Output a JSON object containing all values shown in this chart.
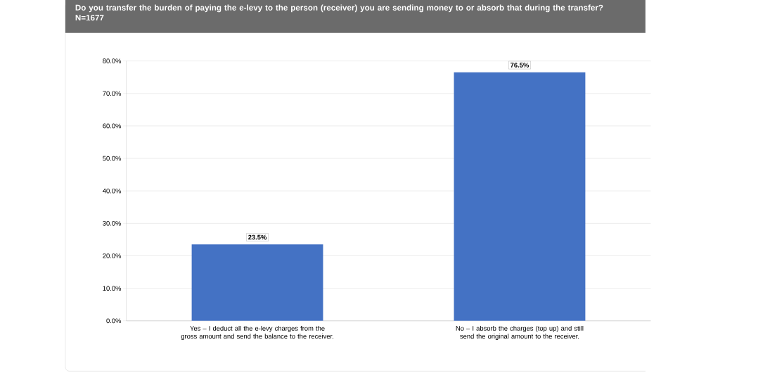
{
  "chart_data": {
    "type": "bar",
    "title": "Do you transfer the burden of paying the e-levy to the person (receiver) you are sending money to or absorb that during the transfer? N=1677",
    "categories": [
      "Yes – I deduct all the e-levy charges from the gross amount and send the balance to the receiver.",
      "No – I absorb the charges (top up) and still send the original amount to the receiver."
    ],
    "values": [
      23.5,
      76.5
    ],
    "value_labels": [
      "23.5%",
      "76.5%"
    ],
    "color": "#4472c4",
    "ylim": [
      0,
      80
    ],
    "yticks": [
      {
        "value": 0,
        "label": "0.0%"
      },
      {
        "value": 10,
        "label": "10.0%"
      },
      {
        "value": 20,
        "label": "20.0%"
      },
      {
        "value": 30,
        "label": "30.0%"
      },
      {
        "value": 40,
        "label": "40.0%"
      },
      {
        "value": 50,
        "label": "50.0%"
      },
      {
        "value": 60,
        "label": "60.0%"
      },
      {
        "value": 70,
        "label": "70.0%"
      },
      {
        "value": 80,
        "label": "80.0%"
      }
    ],
    "grid": "y"
  }
}
